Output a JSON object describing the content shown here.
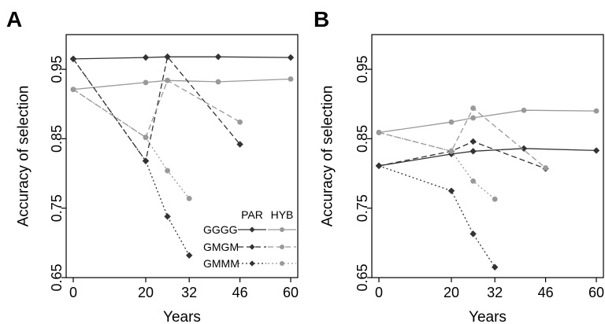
{
  "colors": {
    "PAR": "#333333",
    "HYB": "#999999"
  },
  "legend": {
    "column_headers": [
      "PAR",
      "HYB"
    ],
    "rows": [
      {
        "label": "GGGG",
        "dash": "solid"
      },
      {
        "label": "GMGM",
        "dash": "dashed"
      },
      {
        "label": "GMMM",
        "dash": "dotted"
      }
    ],
    "placement": "bottom-right"
  },
  "chart_data": [
    {
      "panel": "A",
      "type": "line",
      "xlabel": "Years",
      "ylabel": "Accuracy of selection",
      "xlim": [
        0,
        60
      ],
      "ylim": [
        0.65,
        1.0
      ],
      "xticks": [
        0,
        20,
        32,
        46,
        60
      ],
      "yticks": [
        0.65,
        0.75,
        0.85,
        0.95
      ],
      "grid": false,
      "series": [
        {
          "name": "GGGG",
          "program": "PAR",
          "style": "solid",
          "x": [
            0,
            20,
            26,
            40,
            60
          ],
          "y": [
            0.965,
            0.967,
            0.968,
            0.968,
            0.967
          ]
        },
        {
          "name": "GGGG",
          "program": "HYB",
          "style": "solid",
          "x": [
            0,
            20,
            26,
            40,
            60
          ],
          "y": [
            0.921,
            0.931,
            0.934,
            0.932,
            0.936
          ]
        },
        {
          "name": "GMGM",
          "program": "PAR",
          "style": "dashed",
          "x": [
            0,
            20,
            26,
            46
          ],
          "y": [
            0.965,
            0.818,
            0.968,
            0.842
          ]
        },
        {
          "name": "GMGM",
          "program": "HYB",
          "style": "dashed",
          "x": [
            0,
            20,
            26,
            46
          ],
          "y": [
            0.921,
            0.852,
            0.934,
            0.874
          ]
        },
        {
          "name": "GMMM",
          "program": "PAR",
          "style": "dotted",
          "x": [
            0,
            20,
            26,
            32
          ],
          "y": [
            0.965,
            0.818,
            0.738,
            0.682
          ]
        },
        {
          "name": "GMMM",
          "program": "HYB",
          "style": "dotted",
          "x": [
            0,
            20,
            26,
            32
          ],
          "y": [
            0.921,
            0.852,
            0.804,
            0.764
          ]
        }
      ]
    },
    {
      "panel": "B",
      "type": "line",
      "xlabel": "Years",
      "ylabel": "Accuracy of selection",
      "xlim": [
        0,
        60
      ],
      "ylim": [
        0.65,
        1.0
      ],
      "xticks": [
        0,
        20,
        32,
        46,
        60
      ],
      "yticks": [
        0.65,
        0.75,
        0.85,
        0.95
      ],
      "grid": false,
      "series": [
        {
          "name": "GGGG",
          "program": "PAR",
          "style": "solid",
          "x": [
            0,
            20,
            26,
            40,
            60
          ],
          "y": [
            0.811,
            0.828,
            0.832,
            0.836,
            0.833
          ]
        },
        {
          "name": "GGGG",
          "program": "HYB",
          "style": "solid",
          "x": [
            0,
            20,
            26,
            40,
            60
          ],
          "y": [
            0.859,
            0.874,
            0.88,
            0.891,
            0.89
          ]
        },
        {
          "name": "GMGM",
          "program": "PAR",
          "style": "dashed",
          "x": [
            0,
            20,
            26,
            46
          ],
          "y": [
            0.811,
            0.832,
            0.846,
            0.807
          ]
        },
        {
          "name": "GMGM",
          "program": "HYB",
          "style": "dashed",
          "x": [
            0,
            20,
            26,
            46
          ],
          "y": [
            0.859,
            0.832,
            0.894,
            0.808
          ]
        },
        {
          "name": "GMMM",
          "program": "PAR",
          "style": "dotted",
          "x": [
            0,
            20,
            26,
            32
          ],
          "y": [
            0.811,
            0.775,
            0.713,
            0.665
          ]
        },
        {
          "name": "GMMM",
          "program": "HYB",
          "style": "dotted",
          "x": [
            0,
            20,
            26,
            32
          ],
          "y": [
            0.859,
            0.832,
            0.789,
            0.763
          ]
        }
      ]
    }
  ]
}
